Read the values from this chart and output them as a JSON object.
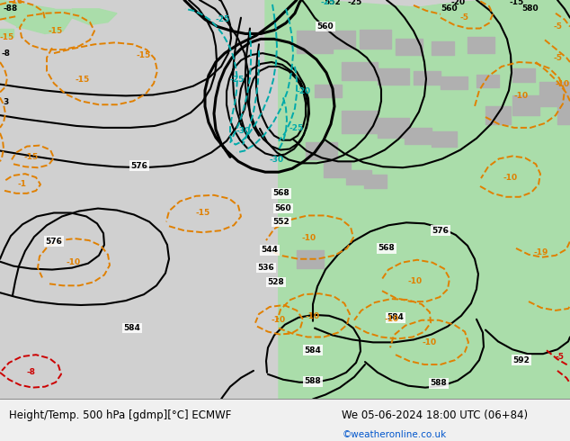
{
  "title_left": "Height/Temp. 500 hPa [gdmp][°C] ECMWF",
  "title_right": "We 05-06-2024 18:00 UTC (06+84)",
  "credit": "©weatheronline.co.uk",
  "fig_bg": "#f0f0f0",
  "ocean_color": "#c8c8c8",
  "land_color": "#aaddaa",
  "mountain_color": "#b0b0b0",
  "title_fontsize": 8.5,
  "credit_fontsize": 7.5,
  "credit_color": "#0055cc"
}
